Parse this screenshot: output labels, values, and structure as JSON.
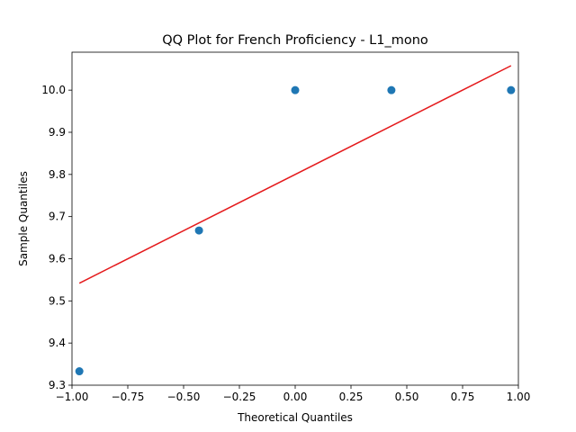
{
  "chart_data": {
    "type": "scatter",
    "title": "QQ Plot for French Proficiency - L1_mono",
    "xlabel": "Theoretical Quantiles",
    "ylabel": "Sample Quantiles",
    "xlim": [
      -1.0,
      1.0
    ],
    "ylim": [
      9.3,
      10.09
    ],
    "x_ticks": [
      -1.0,
      -0.75,
      -0.5,
      -0.25,
      0.0,
      0.25,
      0.5,
      0.75,
      1.0
    ],
    "x_tick_labels": [
      "−1.00",
      "−0.75",
      "−0.50",
      "−0.25",
      "0.00",
      "0.25",
      "0.50",
      "0.75",
      "1.00"
    ],
    "y_ticks": [
      9.3,
      9.4,
      9.5,
      9.6,
      9.7,
      9.8,
      9.9,
      10.0
    ],
    "y_tick_labels": [
      "9.3",
      "9.4",
      "9.5",
      "9.6",
      "9.7",
      "9.8",
      "9.9",
      "10.0"
    ],
    "grid": false,
    "points": [
      {
        "x": -0.967,
        "y": 9.333
      },
      {
        "x": -0.431,
        "y": 9.667
      },
      {
        "x": 0.0,
        "y": 10.0
      },
      {
        "x": 0.431,
        "y": 10.0
      },
      {
        "x": 0.967,
        "y": 10.0
      }
    ],
    "fit_line": {
      "x": [
        -0.967,
        0.967
      ],
      "y": [
        9.542,
        10.058
      ]
    },
    "colors": {
      "points": "#1f77b4",
      "line": "#e41a1c",
      "axes": "#000000"
    }
  }
}
